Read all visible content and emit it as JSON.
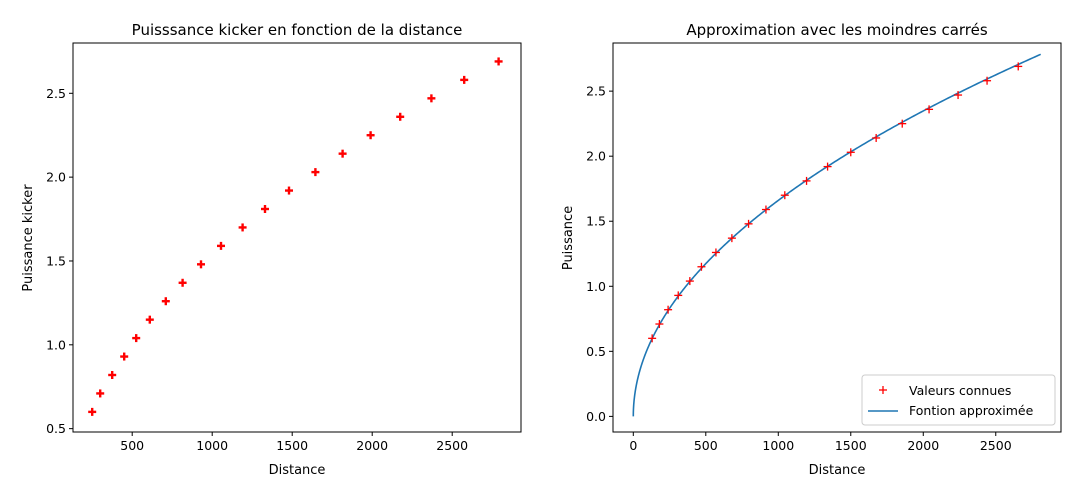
{
  "chart_data": [
    {
      "type": "scatter",
      "title": "Puisssance kicker en fonction de la distance",
      "xlabel": "Distance",
      "ylabel": "Puissance kicker",
      "xlim": [
        130,
        2930
      ],
      "ylim": [
        0.48,
        2.8
      ],
      "xticks": [
        500,
        1000,
        1500,
        2000,
        2500
      ],
      "yticks": [
        0.5,
        1.0,
        1.5,
        2.0,
        2.5
      ],
      "grid": false,
      "series": [
        {
          "color": "#ff0000",
          "marker": "+",
          "x": [
            250,
            300,
            375,
            450,
            525,
            610,
            710,
            815,
            930,
            1055,
            1190,
            1330,
            1480,
            1645,
            1815,
            1990,
            2175,
            2370,
            2575,
            2790
          ],
          "y": [
            0.6,
            0.71,
            0.82,
            0.93,
            1.04,
            1.15,
            1.26,
            1.37,
            1.48,
            1.59,
            1.7,
            1.81,
            1.92,
            2.03,
            2.14,
            2.25,
            2.36,
            2.47,
            2.58,
            2.69
          ]
        }
      ]
    },
    {
      "type": "line",
      "title": "Approximation avec les moindres carrés",
      "xlabel": "Distance",
      "ylabel": "Puissance",
      "xlim": [
        -140,
        2950
      ],
      "ylim": [
        -0.12,
        2.87
      ],
      "xticks": [
        0,
        500,
        1000,
        1500,
        2000,
        2500
      ],
      "yticks": [
        0.0,
        0.5,
        1.0,
        1.5,
        2.0,
        2.5
      ],
      "grid": false,
      "legend": "lower-right",
      "series": [
        {
          "name": "Valeurs connues",
          "color": "#ff0000",
          "marker": "+",
          "x": [
            130,
            180,
            240,
            310,
            390,
            470,
            570,
            680,
            795,
            915,
            1045,
            1195,
            1340,
            1500,
            1675,
            1855,
            2040,
            2240,
            2440,
            2655
          ],
          "y": [
            0.6,
            0.71,
            0.82,
            0.93,
            1.04,
            1.15,
            1.26,
            1.37,
            1.48,
            1.59,
            1.7,
            1.81,
            1.92,
            2.03,
            2.14,
            2.25,
            2.36,
            2.47,
            2.58,
            2.69
          ]
        },
        {
          "name": "Fontion approximée",
          "color": "#1f77b4",
          "kind": "curve",
          "x_range": [
            0,
            2810
          ],
          "formula": "y = 0.0525 * x^0.5"
        }
      ]
    }
  ]
}
